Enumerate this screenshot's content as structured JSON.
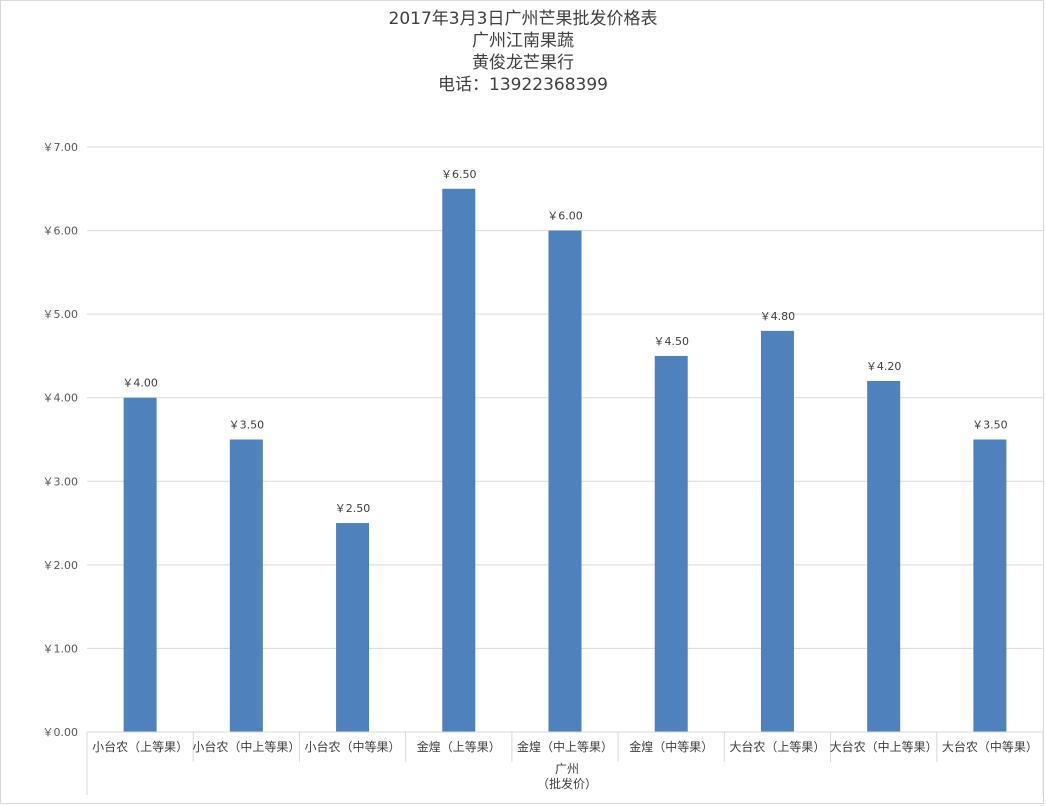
{
  "chart_data": {
    "type": "bar",
    "title_lines": [
      "2017年3月3日广州芒果批发价格表",
      "广州江南果蔬",
      "黄俊龙芒果行",
      "电话：13922368399"
    ],
    "categories": [
      "小台农（上等果）",
      "小台农（中上等果）",
      "小台农（中等果）",
      "金煌（上等果）",
      "金煌（中上等果）",
      "金煌（中等果）",
      "大台农（上等果）",
      "大台农（中上等果）",
      "大台农（中等果）"
    ],
    "values": [
      4.0,
      3.5,
      2.5,
      6.5,
      6.0,
      4.5,
      4.8,
      4.2,
      3.5
    ],
    "data_labels": [
      "￥4.00",
      "￥3.50",
      "￥2.50",
      "￥6.50",
      "￥6.00",
      "￥4.50",
      "￥4.80",
      "￥4.20",
      "￥3.50"
    ],
    "yticks": [
      0,
      1,
      2,
      3,
      4,
      5,
      6,
      7
    ],
    "ytick_labels": [
      "￥0.00",
      "￥1.00",
      "￥2.00",
      "￥3.00",
      "￥4.00",
      "￥5.00",
      "￥6.00",
      "￥7.00"
    ],
    "ylim": [
      0,
      7
    ],
    "x_group_label_lines": [
      "广州",
      "（批发价）"
    ],
    "grid": true,
    "legend": "none",
    "bar_color": "#4f81bd",
    "grid_color": "#d9d9d9"
  }
}
